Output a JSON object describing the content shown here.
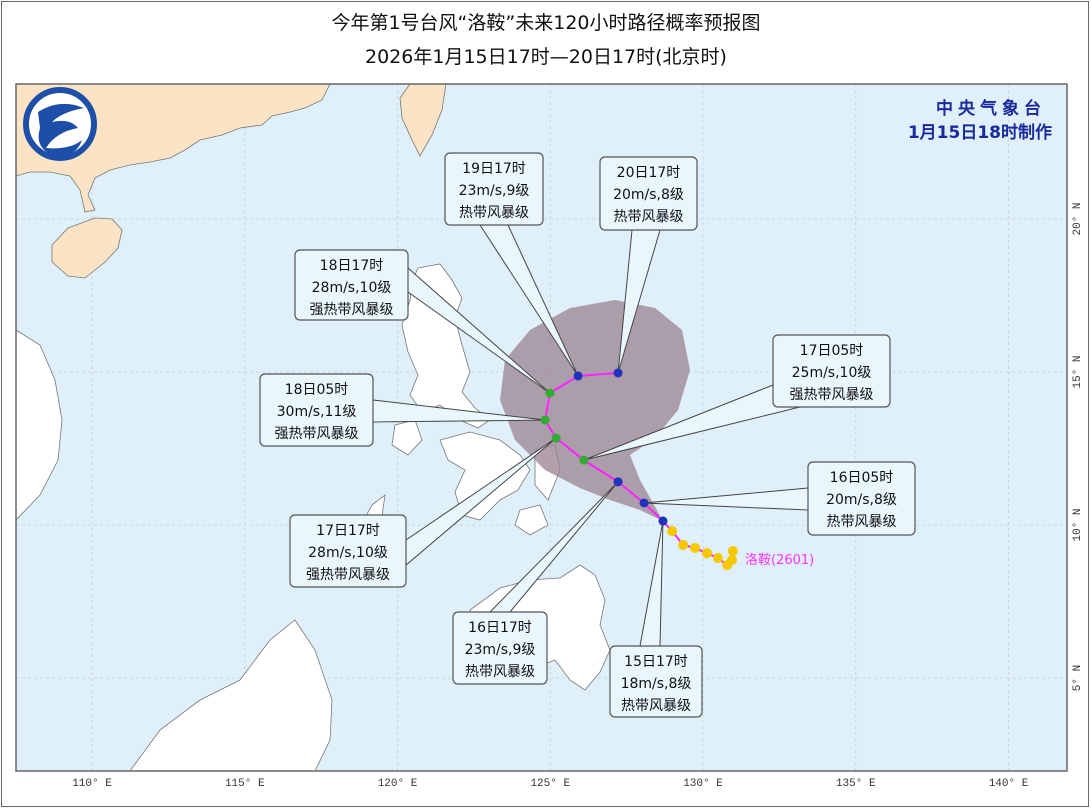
{
  "title": "今年第1号台风“洛鞍”未来120小时路径概率预报图",
  "subtitle": "2026年1月15日17时—20日17时(北京时)",
  "agency": {
    "name": "中央气象台",
    "issued": "1月15日18时制作"
  },
  "typhoon": {
    "label": "洛鞍(2601)",
    "color": "#ff33ff"
  },
  "colors": {
    "ocean": "#dff0fa",
    "china_land": "#fbe3c5",
    "other_land": "#ffffff",
    "cone": "#9e8594",
    "track": "#ff22ff",
    "past_points": "#f5c800",
    "forecast_ts": "#2233bb",
    "forecast_sts": "#33aa33"
  },
  "axes": {
    "lon_labels": [
      "110° E",
      "115° E",
      "120° E",
      "125° E",
      "130° E",
      "135° E",
      "140° E"
    ],
    "lon_values": [
      110,
      115,
      120,
      125,
      130,
      135,
      140
    ],
    "lat_labels": [
      "20° N",
      "15° N",
      "10° N",
      "5° N"
    ],
    "lat_values": [
      20,
      15,
      10,
      5
    ]
  },
  "past_track": [
    {
      "lon": 130.98,
      "lat": 9.15
    },
    {
      "lon": 130.95,
      "lat": 8.86
    },
    {
      "lon": 130.79,
      "lat": 8.69
    },
    {
      "lon": 130.49,
      "lat": 8.92
    },
    {
      "lon": 130.13,
      "lat": 9.08
    },
    {
      "lon": 129.74,
      "lat": 9.25
    },
    {
      "lon": 129.35,
      "lat": 9.35
    },
    {
      "lon": 128.99,
      "lat": 9.8
    }
  ],
  "forecast": [
    {
      "time": "15日17时",
      "wind": "18m/s,8级",
      "grade": "热带风暴级",
      "lon": 128.69,
      "lat": 10.13,
      "level": "ts"
    },
    {
      "time": "16日05时",
      "wind": "20m/s,8级",
      "grade": "热带风暴级",
      "lon": 128.07,
      "lat": 10.72,
      "level": "ts"
    },
    {
      "time": "16日17时",
      "wind": "23m/s,9级",
      "grade": "热带风暴级",
      "lon": 127.22,
      "lat": 11.41,
      "level": "ts"
    },
    {
      "time": "17日05时",
      "wind": "25m/s,10级",
      "grade": "强热带风暴级",
      "lon": 126.1,
      "lat": 12.12,
      "level": "sts"
    },
    {
      "time": "17日17时",
      "wind": "28m/s,10级",
      "grade": "强热带风暴级",
      "lon": 125.19,
      "lat": 12.84,
      "level": "sts"
    },
    {
      "time": "18日05时",
      "wind": "30m/s,11级",
      "grade": "强热带风暴级",
      "lon": 124.83,
      "lat": 13.43,
      "level": "sts"
    },
    {
      "time": "18日17时",
      "wind": "28m/s,10级",
      "grade": "强热带风暴级",
      "lon": 124.99,
      "lat": 14.31,
      "level": "sts"
    },
    {
      "time": "19日17时",
      "wind": "23m/s,9级",
      "grade": "热带风暴级",
      "lon": 125.91,
      "lat": 14.87,
      "level": "ts"
    },
    {
      "time": "20日17时",
      "wind": "20m/s,8级",
      "grade": "热带风暴级",
      "lon": 127.22,
      "lat": 14.97,
      "level": "ts"
    }
  ]
}
